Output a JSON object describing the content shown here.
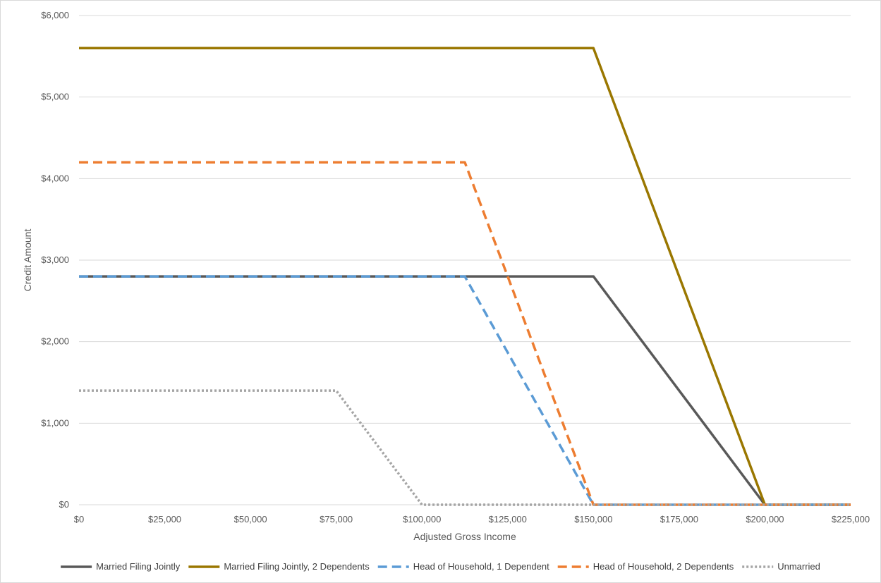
{
  "chart_data": {
    "type": "line",
    "title": "",
    "xlabel": "Adjusted Gross Income",
    "ylabel": "Credit Amount",
    "xlim": [
      0,
      225000
    ],
    "ylim": [
      0,
      6000
    ],
    "x_ticks": [
      0,
      25000,
      50000,
      75000,
      100000,
      125000,
      150000,
      175000,
      200000,
      225000
    ],
    "x_tick_labels": [
      "$0",
      "$25,000",
      "$50,000",
      "$75,000",
      "$100,000",
      "$125,000",
      "$150,000",
      "$175,000",
      "$200,000",
      "$225,000"
    ],
    "y_ticks": [
      0,
      1000,
      2000,
      3000,
      4000,
      5000,
      6000
    ],
    "y_tick_labels": [
      "$0",
      "$1,000",
      "$2,000",
      "$3,000",
      "$4,000",
      "$5,000",
      "$6,000"
    ],
    "grid": "horizontal",
    "legend_position": "bottom",
    "series": [
      {
        "name": "Married Filing Jointly",
        "color": "#595959",
        "style": "solid",
        "points": [
          [
            0,
            2800
          ],
          [
            150000,
            2800
          ],
          [
            200000,
            0
          ],
          [
            225000,
            0
          ]
        ]
      },
      {
        "name": "Married Filing Jointly, 2 Dependents",
        "color": "#9a7700",
        "style": "solid",
        "points": [
          [
            0,
            5600
          ],
          [
            150000,
            5600
          ],
          [
            200000,
            0
          ],
          [
            225000,
            0
          ]
        ]
      },
      {
        "name": "Head of Household, 1 Dependent",
        "color": "#5b9bd5",
        "style": "dashed",
        "points": [
          [
            0,
            2800
          ],
          [
            112500,
            2800
          ],
          [
            150000,
            0
          ],
          [
            225000,
            0
          ]
        ]
      },
      {
        "name": "Head of Household, 2 Dependents",
        "color": "#ed7d31",
        "style": "dashed",
        "points": [
          [
            0,
            4200
          ],
          [
            112500,
            4200
          ],
          [
            150000,
            0
          ],
          [
            225000,
            0
          ]
        ]
      },
      {
        "name": "Unmarried",
        "color": "#a5a5a5",
        "style": "dotted",
        "points": [
          [
            0,
            1400
          ],
          [
            75000,
            1400
          ],
          [
            100000,
            0
          ],
          [
            225000,
            0
          ]
        ]
      }
    ]
  }
}
